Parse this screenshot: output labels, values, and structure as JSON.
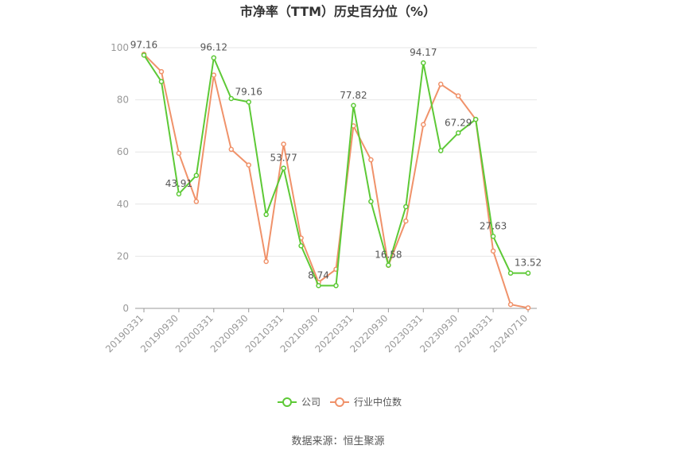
{
  "chart_data": {
    "type": "line",
    "title": "市净率（TTM）历史百分位（%）",
    "x": [
      "20190331",
      "20190630",
      "20190930",
      "20191231",
      "20200331",
      "20200630",
      "20200930",
      "20201231",
      "20210331",
      "20210630",
      "20210930",
      "20211231",
      "20220331",
      "20220630",
      "20220930",
      "20221231",
      "20230331",
      "20230630",
      "20230930",
      "20231231",
      "20240331",
      "20240630",
      "20240710"
    ],
    "x_tick_labels": [
      "20190331",
      "20190930",
      "20200331",
      "20200930",
      "20210331",
      "20210930",
      "20220331",
      "20220930",
      "20230331",
      "20230930",
      "20240331",
      "20240710"
    ],
    "y_ticks": [
      "0",
      "20",
      "40",
      "60",
      "80",
      "100"
    ],
    "ylim": [
      0,
      100
    ],
    "grid": true,
    "legend_position": "bottom",
    "series": [
      {
        "name": "公司",
        "color": "#5dc936",
        "values": [
          97.16,
          87.0,
          43.91,
          51.0,
          96.12,
          80.5,
          79.16,
          36.0,
          53.77,
          24.0,
          8.74,
          8.74,
          77.82,
          41.0,
          16.58,
          39.0,
          94.17,
          60.5,
          67.29,
          72.5,
          27.63,
          13.52,
          13.52
        ]
      },
      {
        "name": "行业中位数",
        "color": "#f0926a",
        "values": [
          97.5,
          90.8,
          59.5,
          41.0,
          89.5,
          61.0,
          55.0,
          18.0,
          63.0,
          27.0,
          10.0,
          15.0,
          70.0,
          57.0,
          16.5,
          33.5,
          70.5,
          86.0,
          81.5,
          72.5,
          22.0,
          1.5,
          0.2
        ]
      }
    ],
    "data_labels": [
      {
        "series": 0,
        "index": 0,
        "text": "97.16"
      },
      {
        "series": 0,
        "index": 2,
        "text": "43.91"
      },
      {
        "series": 0,
        "index": 4,
        "text": "96.12"
      },
      {
        "series": 0,
        "index": 6,
        "text": "79.16"
      },
      {
        "series": 0,
        "index": 8,
        "text": "53.77"
      },
      {
        "series": 0,
        "index": 10,
        "text": "8.74"
      },
      {
        "series": 0,
        "index": 12,
        "text": "77.82"
      },
      {
        "series": 0,
        "index": 14,
        "text": "16.58"
      },
      {
        "series": 0,
        "index": 16,
        "text": "94.17"
      },
      {
        "series": 0,
        "index": 18,
        "text": "67.29"
      },
      {
        "series": 0,
        "index": 20,
        "text": "27.63"
      },
      {
        "series": 0,
        "index": 22,
        "text": "13.52"
      }
    ]
  },
  "source_text": "数据来源：恒生聚源"
}
